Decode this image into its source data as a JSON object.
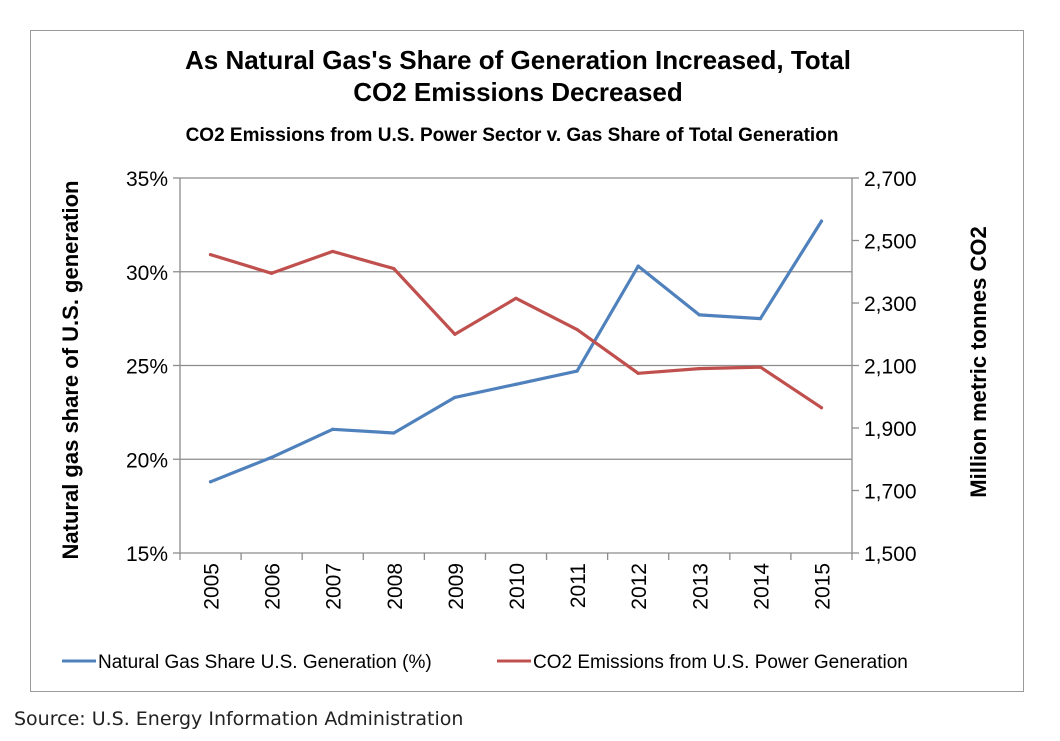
{
  "chart_data": {
    "type": "line",
    "title_line1": "As Natural Gas's Share of Generation Increased, Total",
    "title_line2": "CO2 Emissions Decreased",
    "subtitle": "CO2 Emissions from U.S. Power Sector v. Gas Share of Total Generation",
    "x": [
      "2005",
      "2006",
      "2007",
      "2008",
      "2009",
      "2010",
      "2011",
      "2012",
      "2013",
      "2014",
      "2015"
    ],
    "y_left": {
      "label": "Natural gas share of U.S. generation",
      "range": [
        15,
        35
      ],
      "ticks": [
        15,
        20,
        25,
        30,
        35
      ],
      "tick_labels": [
        "15%",
        "20%",
        "25%",
        "30%",
        "35%"
      ]
    },
    "y_right": {
      "label": "Million metric tonnes CO2",
      "range": [
        1500,
        2700
      ],
      "ticks": [
        1500,
        1700,
        1900,
        2100,
        2300,
        2500,
        2700
      ],
      "tick_labels": [
        "1,500",
        "1,700",
        "1,900",
        "2,100",
        "2,300",
        "2,500",
        "2,700"
      ]
    },
    "grid": true,
    "legend_position": "bottom",
    "series": [
      {
        "name": "Natural Gas Share U.S. Generation (%)",
        "axis": "left",
        "color": "#4f81bd",
        "values": [
          18.8,
          20.1,
          21.6,
          21.4,
          23.3,
          24.0,
          24.7,
          30.3,
          27.7,
          27.5,
          32.7
        ]
      },
      {
        "name": "CO2 Emissions from U.S. Power Generation",
        "axis": "right",
        "color": "#c0504d",
        "values": [
          2455,
          2395,
          2465,
          2410,
          2200,
          2315,
          2215,
          2075,
          2090,
          2095,
          1965
        ]
      }
    ]
  },
  "source": "Source: U.S. Energy Information Administration"
}
